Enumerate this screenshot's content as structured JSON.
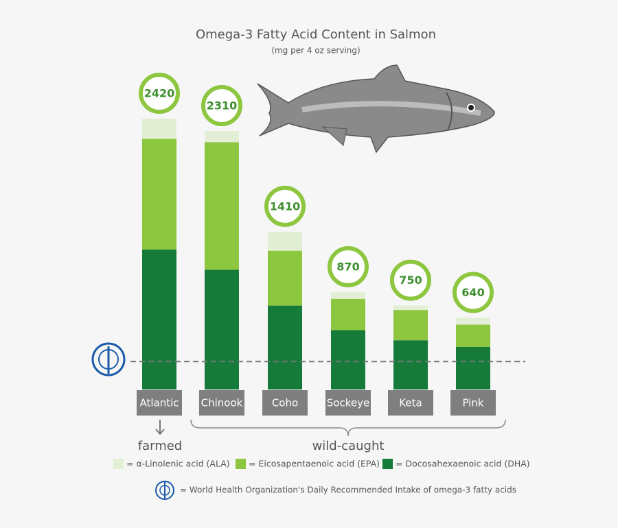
{
  "chart_data": {
    "type": "bar",
    "stacked": true,
    "title": "Omega-3 Fatty Acid Content in Salmon",
    "subtitle": "(mg per 4 oz serving)",
    "categories": [
      "Atlantic",
      "Chinook",
      "Coho",
      "Sockeye",
      "Keta",
      "Pink"
    ],
    "series": [
      {
        "name": "= Docosahexaenoic acid (DHA)",
        "color": "#157a3a",
        "values": [
          1250,
          1070,
          750,
          530,
          440,
          380
        ]
      },
      {
        "name": "= Eicosapentaenoic acid (EPA)",
        "color": "#8dc63f",
        "values": [
          990,
          1140,
          490,
          280,
          270,
          200
        ]
      },
      {
        "name": "= α-Linolenic acid (ALA)",
        "color": "#e3efd5",
        "values": [
          180,
          100,
          170,
          60,
          40,
          60
        ]
      }
    ],
    "totals": [
      2420,
      2310,
      1410,
      870,
      750,
      640
    ],
    "groups": [
      {
        "label": "farmed"
      },
      {
        "label": "wild-caught"
      }
    ],
    "reference_line": {
      "value": 250,
      "label": "= World Health Organization's Daily Recommended Intake of omega-3 fatty acids"
    },
    "ylim": [
      0,
      2500
    ]
  }
}
